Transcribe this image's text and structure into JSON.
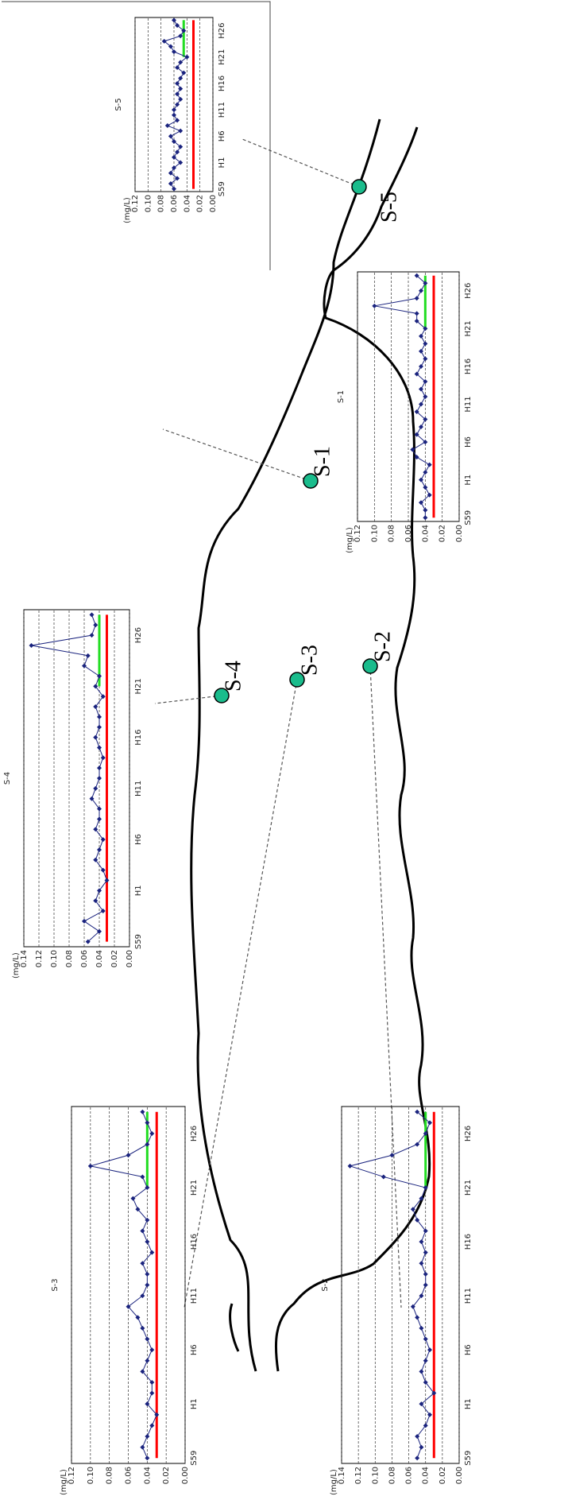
{
  "map_labels": [
    "S-5",
    "S-1",
    "S-4",
    "S-3",
    "S-2"
  ],
  "chart_data": [
    {
      "type": "line",
      "title": "S-3",
      "y_label": "(mg/L)",
      "categories": [
        "S59",
        null,
        null,
        null,
        null,
        "H1",
        null,
        null,
        null,
        null,
        "H6",
        null,
        null,
        null,
        null,
        "H11",
        null,
        null,
        null,
        null,
        "H16",
        null,
        null,
        null,
        null,
        "H21",
        null,
        null,
        null,
        null,
        "H26",
        null,
        null
      ],
      "series": [
        {
          "color": "#1a237e",
          "marker": "diamond",
          "values": [
            0.04,
            0.045,
            0.04,
            0.035,
            0.03,
            0.04,
            0.035,
            0.035,
            0.045,
            0.04,
            0.035,
            0.04,
            0.045,
            0.05,
            0.06,
            0.045,
            0.04,
            0.04,
            0.045,
            0.035,
            0.04,
            0.045,
            0.04,
            0.05,
            0.055,
            0.04,
            0.045,
            0.1,
            0.06,
            0.04,
            0.035,
            0.04,
            0.045
          ]
        },
        {
          "color": "#ff0000",
          "values": [
            0.03,
            0.03,
            0.03,
            0.03,
            0.03,
            0.03,
            0.03,
            0.03,
            0.03,
            0.03,
            0.03,
            0.03,
            0.03,
            0.03,
            0.03,
            0.03,
            0.03,
            0.03,
            0.03,
            0.03,
            0.03,
            0.03,
            0.03,
            0.03,
            0.03,
            0.03,
            0.03,
            0.03,
            0.03,
            0.03,
            0.03,
            0.03,
            0.03
          ]
        },
        {
          "color": "#22dd22",
          "values": [
            null,
            null,
            null,
            null,
            null,
            null,
            null,
            null,
            null,
            null,
            null,
            null,
            null,
            null,
            null,
            null,
            null,
            null,
            null,
            null,
            null,
            null,
            null,
            null,
            null,
            0.04,
            0.04,
            0.04,
            0.04,
            0.04,
            0.04,
            0.04,
            0.04
          ]
        }
      ],
      "ylim": [
        0,
        0.12
      ],
      "yticks": [
        {
          "value": 0,
          "label": "0.00"
        },
        0.02,
        0.04,
        0.06,
        0.08,
        {
          "value": 0.1,
          "label": "0.10"
        },
        0.12
      ],
      "grid": true
    },
    {
      "type": "line",
      "title": "S-2",
      "y_label": "(mg/L)",
      "categories": [
        "S59",
        null,
        null,
        null,
        null,
        "H1",
        null,
        null,
        null,
        null,
        "H6",
        null,
        null,
        null,
        null,
        "H11",
        null,
        null,
        null,
        null,
        "H16",
        null,
        null,
        null,
        null,
        "H21",
        null,
        null,
        null,
        null,
        "H26",
        null,
        null
      ],
      "series": [
        {
          "color": "#1a237e",
          "marker": "diamond",
          "values": [
            0.05,
            0.045,
            0.05,
            0.04,
            0.035,
            0.045,
            0.03,
            0.04,
            0.045,
            0.04,
            0.035,
            0.04,
            0.045,
            0.05,
            0.055,
            0.045,
            0.04,
            0.04,
            0.045,
            0.04,
            0.045,
            0.04,
            0.05,
            0.055,
            0.045,
            0.04,
            0.09,
            0.13,
            0.08,
            0.05,
            0.04,
            0.035,
            0.05
          ]
        },
        {
          "color": "#ff0000",
          "values": [
            0.03,
            0.03,
            0.03,
            0.03,
            0.03,
            0.03,
            0.03,
            0.03,
            0.03,
            0.03,
            0.03,
            0.03,
            0.03,
            0.03,
            0.03,
            0.03,
            0.03,
            0.03,
            0.03,
            0.03,
            0.03,
            0.03,
            0.03,
            0.03,
            0.03,
            0.03,
            0.03,
            0.03,
            0.03,
            0.03,
            0.03,
            0.03,
            0.03
          ]
        },
        {
          "color": "#22dd22",
          "values": [
            null,
            null,
            null,
            null,
            null,
            null,
            null,
            null,
            null,
            null,
            null,
            null,
            null,
            null,
            null,
            null,
            null,
            null,
            null,
            null,
            null,
            null,
            null,
            null,
            null,
            0.04,
            0.04,
            0.04,
            0.04,
            0.04,
            0.04,
            0.04,
            0.04
          ]
        }
      ],
      "ylim": [
        0,
        0.14
      ],
      "yticks": [
        {
          "value": 0,
          "label": "0.00"
        },
        0.02,
        0.04,
        0.06,
        0.08,
        {
          "value": 0.1,
          "label": "0.10"
        },
        0.12,
        0.14
      ],
      "grid": true
    },
    {
      "type": "line",
      "title": "S-4",
      "y_label": "(mg/L)",
      "categories": [
        "S59",
        null,
        null,
        null,
        null,
        "H1",
        null,
        null,
        null,
        null,
        "H6",
        null,
        null,
        null,
        null,
        "H11",
        null,
        null,
        null,
        null,
        "H16",
        null,
        null,
        null,
        null,
        "H21",
        null,
        null,
        null,
        null,
        "H26",
        null,
        null
      ],
      "series": [
        {
          "color": "#1a237e",
          "marker": "diamond",
          "values": [
            0.055,
            0.04,
            0.06,
            0.035,
            0.045,
            0.04,
            0.03,
            0.035,
            0.045,
            0.04,
            0.035,
            0.045,
            0.04,
            0.04,
            0.05,
            0.045,
            0.04,
            0.04,
            0.035,
            0.04,
            0.045,
            0.04,
            0.04,
            0.045,
            0.035,
            0.045,
            0.04,
            0.06,
            0.055,
            0.13,
            0.05,
            0.045,
            0.05
          ]
        },
        {
          "color": "#ff0000",
          "values": [
            0.03,
            0.03,
            0.03,
            0.03,
            0.03,
            0.03,
            0.03,
            0.03,
            0.03,
            0.03,
            0.03,
            0.03,
            0.03,
            0.03,
            0.03,
            0.03,
            0.03,
            0.03,
            0.03,
            0.03,
            0.03,
            0.03,
            0.03,
            0.03,
            0.03,
            0.03,
            0.03,
            0.03,
            0.03,
            0.03,
            0.03,
            0.03,
            0.03
          ]
        },
        {
          "color": "#22dd22",
          "values": [
            null,
            null,
            null,
            null,
            null,
            null,
            null,
            null,
            null,
            null,
            null,
            null,
            null,
            null,
            null,
            null,
            null,
            null,
            null,
            null,
            null,
            null,
            null,
            null,
            null,
            0.04,
            0.04,
            0.04,
            0.04,
            0.04,
            0.04,
            0.04,
            0.04
          ]
        }
      ],
      "ylim": [
        0,
        0.14
      ],
      "yticks": [
        {
          "value": 0,
          "label": "0.00"
        },
        0.02,
        0.04,
        0.06,
        0.08,
        {
          "value": 0.1,
          "label": "0.10"
        },
        0.12,
        0.14
      ],
      "grid": true
    },
    {
      "type": "line",
      "title": "S-1",
      "y_label": "(mg/L)",
      "categories": [
        "S59",
        null,
        null,
        null,
        null,
        "H1",
        null,
        null,
        null,
        null,
        "H6",
        null,
        null,
        null,
        null,
        "H11",
        null,
        null,
        null,
        null,
        "H16",
        null,
        null,
        null,
        null,
        "H21",
        null,
        null,
        null,
        null,
        "H26",
        null,
        null
      ],
      "series": [
        {
          "color": "#1a237e",
          "marker": "diamond",
          "values": [
            0.04,
            0.04,
            0.045,
            0.035,
            0.04,
            0.045,
            0.04,
            0.035,
            0.05,
            0.055,
            0.04,
            0.05,
            0.045,
            0.04,
            0.05,
            0.045,
            0.04,
            0.045,
            0.04,
            0.05,
            0.045,
            0.04,
            0.045,
            0.04,
            0.045,
            0.04,
            0.05,
            0.05,
            0.1,
            0.05,
            0.045,
            0.04,
            0.05
          ]
        },
        {
          "color": "#ff0000",
          "values": [
            0.03,
            0.03,
            0.03,
            0.03,
            0.03,
            0.03,
            0.03,
            0.03,
            0.03,
            0.03,
            0.03,
            0.03,
            0.03,
            0.03,
            0.03,
            0.03,
            0.03,
            0.03,
            0.03,
            0.03,
            0.03,
            0.03,
            0.03,
            0.03,
            0.03,
            0.03,
            0.03,
            0.03,
            0.03,
            0.03,
            0.03,
            0.03,
            0.03
          ]
        },
        {
          "color": "#22dd22",
          "values": [
            null,
            null,
            null,
            null,
            null,
            null,
            null,
            null,
            null,
            null,
            null,
            null,
            null,
            null,
            null,
            null,
            null,
            null,
            null,
            null,
            null,
            null,
            null,
            null,
            null,
            0.04,
            0.04,
            0.04,
            0.04,
            0.04,
            0.04,
            0.04,
            0.04
          ]
        }
      ],
      "ylim": [
        0,
        0.12
      ],
      "yticks": [
        {
          "value": 0,
          "label": "0.00"
        },
        0.02,
        0.04,
        0.06,
        0.08,
        {
          "value": 0.1,
          "label": "0.10"
        },
        0.12
      ],
      "grid": true
    },
    {
      "type": "line",
      "title": "S-5",
      "y_label": "(mg/L)",
      "categories": [
        "S59",
        null,
        null,
        null,
        null,
        "H1",
        null,
        null,
        null,
        null,
        "H6",
        null,
        null,
        null,
        null,
        "H11",
        null,
        null,
        null,
        null,
        "H16",
        null,
        null,
        null,
        null,
        "H21",
        null,
        null,
        null,
        null,
        "H26",
        null,
        null
      ],
      "series": [
        {
          "color": "#1a237e",
          "marker": "diamond",
          "values": [
            0.06,
            0.065,
            0.055,
            0.065,
            0.06,
            0.05,
            0.06,
            0.055,
            0.05,
            0.06,
            0.065,
            0.05,
            0.07,
            0.055,
            0.06,
            0.06,
            0.055,
            0.05,
            0.055,
            0.05,
            0.055,
            0.05,
            0.045,
            0.055,
            0.05,
            0.04,
            0.06,
            0.065,
            0.075,
            0.05,
            0.045,
            0.055,
            0.06
          ]
        },
        {
          "color": "#ff0000",
          "values": [
            0.03,
            0.03,
            0.03,
            0.03,
            0.03,
            0.03,
            0.03,
            0.03,
            0.03,
            0.03,
            0.03,
            0.03,
            0.03,
            0.03,
            0.03,
            0.03,
            0.03,
            0.03,
            0.03,
            0.03,
            0.03,
            0.03,
            0.03,
            0.03,
            0.03,
            0.03,
            0.03,
            0.03,
            0.03,
            0.03,
            0.03,
            0.03,
            0.03
          ]
        },
        {
          "color": "#22dd22",
          "values": [
            null,
            null,
            null,
            null,
            null,
            null,
            null,
            null,
            null,
            null,
            null,
            null,
            null,
            null,
            null,
            null,
            null,
            null,
            null,
            null,
            null,
            null,
            null,
            null,
            null,
            0.045,
            0.045,
            0.045,
            0.045,
            0.045,
            0.045,
            0.045,
            0.045
          ]
        }
      ],
      "ylim": [
        0,
        0.12
      ],
      "yticks": [
        {
          "value": 0,
          "label": "0.00"
        },
        0.02,
        0.04,
        0.06,
        0.08,
        {
          "value": 0.1,
          "label": "0.10"
        },
        0.12
      ],
      "grid": true
    }
  ]
}
